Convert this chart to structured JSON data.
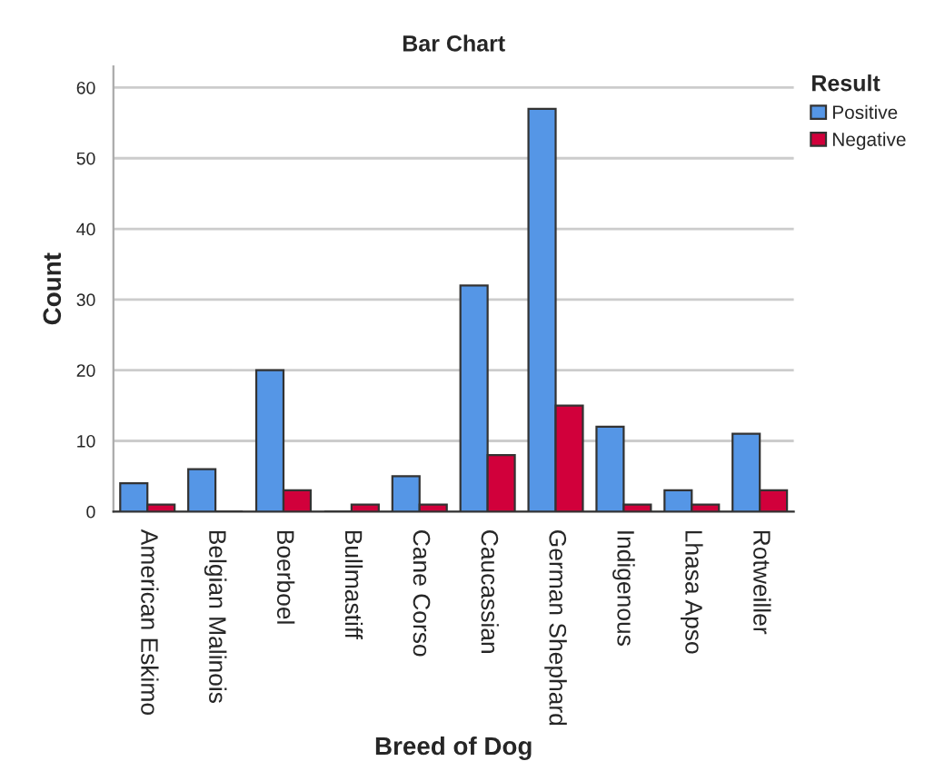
{
  "chart_data": {
    "type": "bar",
    "title": "Bar Chart",
    "xlabel": "Breed of Dog",
    "ylabel": "Count",
    "legend_title": "Result",
    "categories": [
      "American Eskimo",
      "Belgian Malinois",
      "Boerboel",
      "Bullmastiff",
      "Cane Corso",
      "Caucassian",
      "German Shephard",
      "Indigenous",
      "Lhasa Apso",
      "Rotweiller"
    ],
    "series": [
      {
        "name": "Positive",
        "color": "#5596e6",
        "values": [
          4,
          6,
          20,
          0,
          5,
          32,
          57,
          12,
          3,
          11
        ]
      },
      {
        "name": "Negative",
        "color": "#d1003b",
        "values": [
          1,
          0,
          3,
          1,
          1,
          8,
          15,
          1,
          1,
          3
        ]
      }
    ],
    "ylim": [
      0,
      63
    ],
    "yticks": [
      0,
      10,
      20,
      30,
      40,
      50,
      60
    ],
    "grid": "y",
    "legend": "top right"
  }
}
